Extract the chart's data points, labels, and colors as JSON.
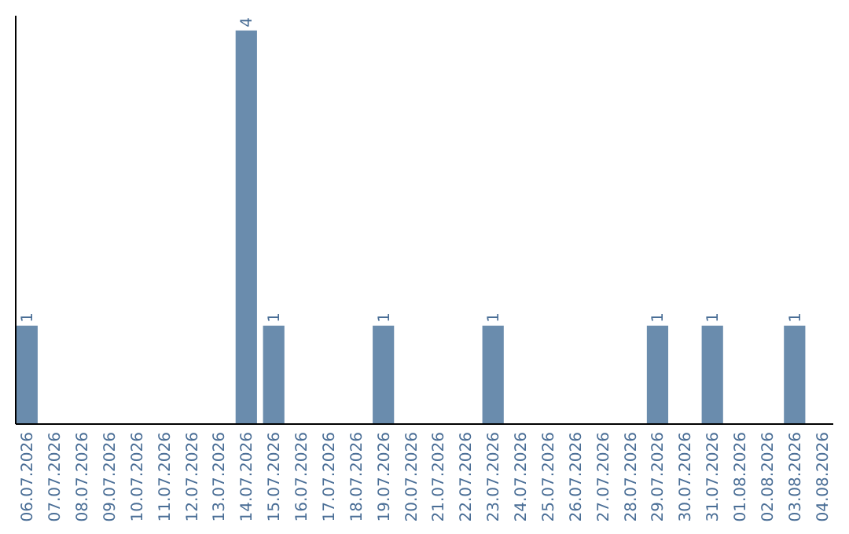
{
  "chart_data": {
    "type": "bar",
    "categories": [
      "06.07.2026",
      "07.07.2026",
      "08.07.2026",
      "09.07.2026",
      "10.07.2026",
      "11.07.2026",
      "12.07.2026",
      "13.07.2026",
      "14.07.2026",
      "15.07.2026",
      "16.07.2026",
      "17.07.2026",
      "18.07.2026",
      "19.07.2026",
      "20.07.2026",
      "21.07.2026",
      "22.07.2026",
      "23.07.2026",
      "24.07.2026",
      "25.07.2026",
      "26.07.2026",
      "27.07.2026",
      "28.07.2026",
      "29.07.2026",
      "30.07.2026",
      "31.07.2026",
      "01.08.2026",
      "02.08.2026",
      "03.08.2026",
      "04.08.2026"
    ],
    "values": [
      1,
      0,
      0,
      0,
      0,
      0,
      0,
      0,
      4,
      1,
      0,
      0,
      0,
      1,
      0,
      0,
      0,
      1,
      0,
      0,
      0,
      0,
      0,
      1,
      0,
      1,
      0,
      0,
      1,
      0
    ],
    "value_labels": [
      "1",
      null,
      null,
      null,
      null,
      null,
      null,
      null,
      "4",
      "1",
      null,
      null,
      null,
      "1",
      null,
      null,
      null,
      "1",
      null,
      null,
      null,
      null,
      null,
      "1",
      null,
      "1",
      null,
      null,
      "1",
      null
    ],
    "color": "#6a8cad",
    "ylim": [
      0,
      4.15
    ],
    "tick_labels": "x"
  }
}
